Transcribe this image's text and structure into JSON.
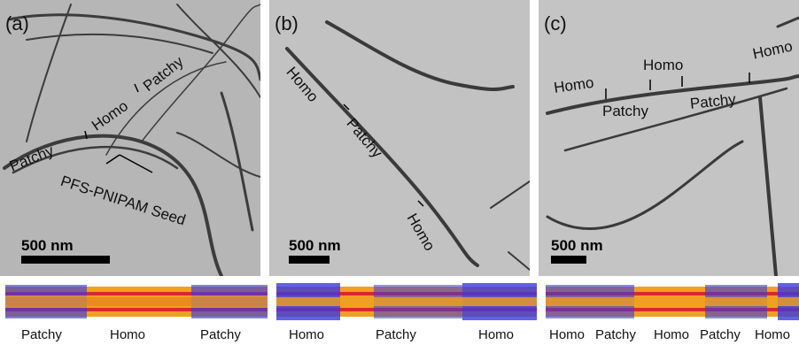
{
  "panels": [
    {
      "letter": "(a)",
      "labels": [
        "Patchy",
        "Homo",
        "Patchy",
        "PFS-PNIPAM Seed"
      ],
      "scale_bar": "500 nm",
      "segments": [
        "Patchy",
        "Homo",
        "Patchy"
      ]
    },
    {
      "letter": "(b)",
      "labels": [
        "Homo",
        "Patchy",
        "Homo"
      ],
      "scale_bar": "500 nm",
      "segments": [
        "Homo",
        "Patchy",
        "Homo"
      ]
    },
    {
      "letter": "(c)",
      "labels": [
        "Homo",
        "Homo",
        "Homo",
        "Patchy",
        "Patchy"
      ],
      "scale_bar": "500 nm",
      "segments": [
        "Homo",
        "Patchy",
        "Homo",
        "Patchy",
        "Homo"
      ]
    }
  ],
  "colors": {
    "micrograph_bg": "#b4b4b4",
    "fiber": "#3a3a3a",
    "core_orange": "#f0a020",
    "core_red": "#d8282a",
    "corona_blue": "#3a3ae0"
  }
}
